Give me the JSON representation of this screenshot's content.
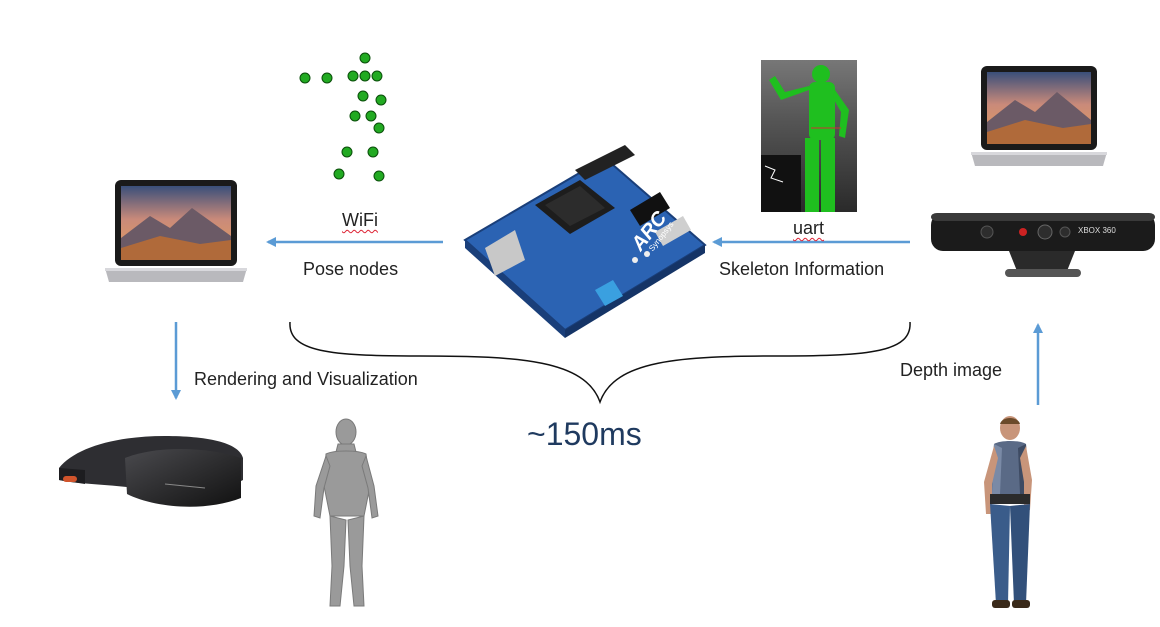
{
  "labels": {
    "wifi": "WiFi",
    "pose_nodes": "Pose nodes",
    "uart": "uart",
    "skeleton_information": "Skeleton Information",
    "rendering": "Rendering and Visualization",
    "depth_image": "Depth image",
    "latency": "~150ms",
    "board_brand": "ARC",
    "board_brand_sub": "Synopsys",
    "kinect_brand": "XBOX 360"
  },
  "colors": {
    "arrow": "#5b9bd5",
    "latency_text": "#1f3a5f",
    "skeleton_nodes": "#22aa22",
    "board_blue": "#2b63b3",
    "depth_body": "#1fbf1f"
  }
}
